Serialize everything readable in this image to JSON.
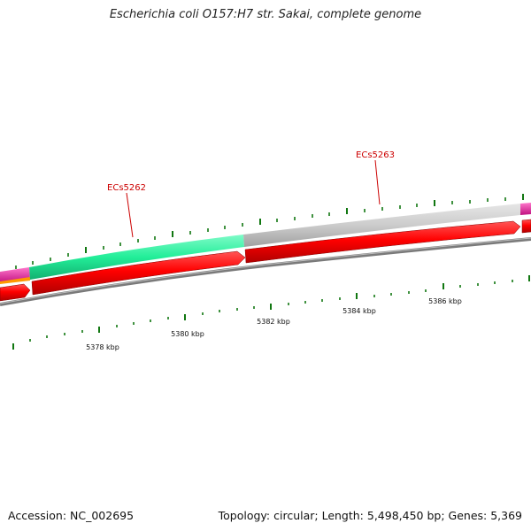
{
  "header": {
    "title": "Escherichia coli O157:H7 str. Sakai, complete genome"
  },
  "footer": {
    "accession": "Accession: NC_002695",
    "summary": "Topology: circular; Length: 5,498,450 bp; Genes: 5,369"
  },
  "colors": {
    "forward_cds": "#ff0000",
    "backbone": "#888888",
    "gene_teal": "#22ee99",
    "gene_grey": "#cccccc",
    "gene_magenta": "#ee22aa",
    "gene_orange": "#ff9900",
    "ticks": "#117711",
    "label_red": "#cc0000"
  },
  "gene_labels": [
    {
      "text": "ECs5262"
    },
    {
      "text": "ECs5263"
    }
  ],
  "position_labels": [
    {
      "text": "5378 kbp"
    },
    {
      "text": "5380 kbp"
    },
    {
      "text": "5382 kbp"
    },
    {
      "text": "5384 kbp"
    },
    {
      "text": "5386 kbp"
    }
  ]
}
